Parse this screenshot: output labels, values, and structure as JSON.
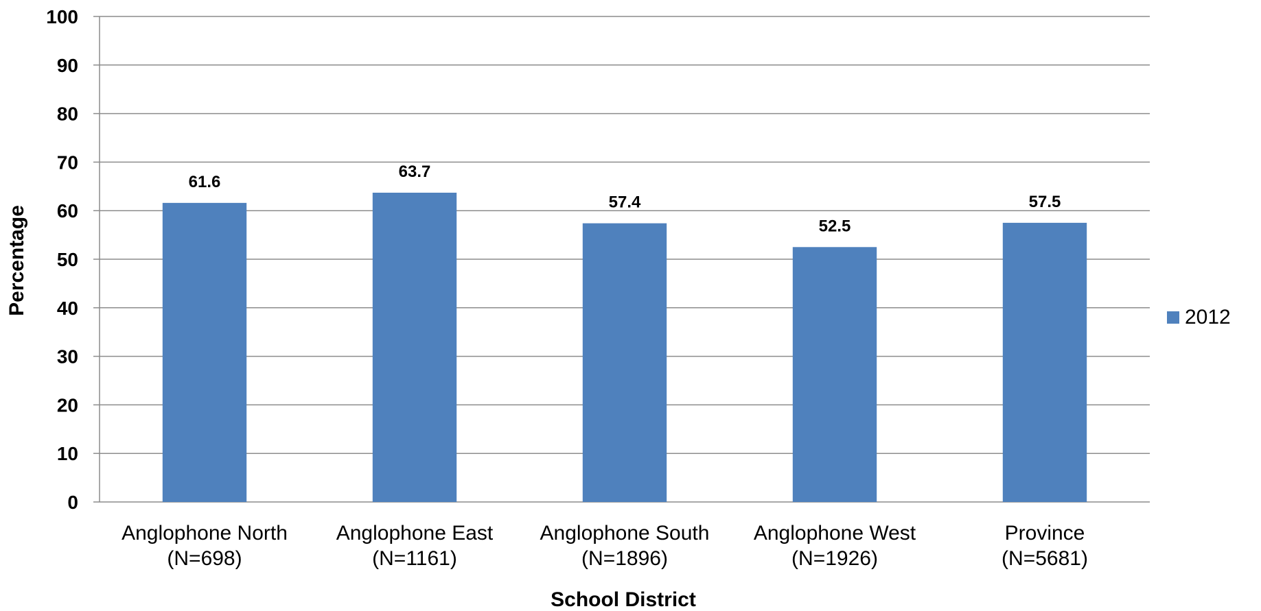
{
  "chart_data": {
    "type": "bar",
    "categories": [
      [
        "Anglophone North",
        "(N=698)"
      ],
      [
        "Anglophone East",
        "(N=1161)"
      ],
      [
        "Anglophone South",
        "(N=1896)"
      ],
      [
        "Anglophone West",
        "(N=1926)"
      ],
      [
        "Province",
        "(N=5681)"
      ]
    ],
    "series": [
      {
        "name": "2012",
        "values": [
          61.6,
          63.7,
          57.4,
          52.5,
          57.5
        ],
        "color": "#4f81bd"
      }
    ],
    "data_labels": [
      "61.6",
      "63.7",
      "57.4",
      "52.5",
      "57.5"
    ],
    "xlabel": "School District",
    "ylabel": "Percentage",
    "ylim": [
      0,
      100
    ],
    "yticks": [
      0,
      10,
      20,
      30,
      40,
      50,
      60,
      70,
      80,
      90,
      100
    ],
    "grid": true,
    "legend_position": "right"
  }
}
